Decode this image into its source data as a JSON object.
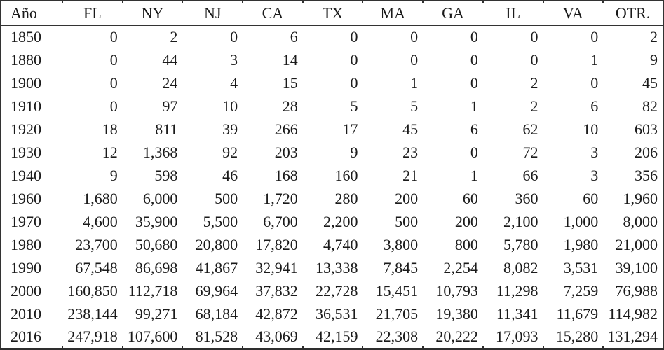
{
  "table": {
    "columns": [
      "Año",
      "FL",
      "NY",
      "NJ",
      "CA",
      "TX",
      "MA",
      "GA",
      "IL",
      "VA",
      "OTR."
    ],
    "rows": [
      [
        "1850",
        "0",
        "2",
        "0",
        "6",
        "0",
        "0",
        "0",
        "0",
        "0",
        "2"
      ],
      [
        "1880",
        "0",
        "44",
        "3",
        "14",
        "0",
        "0",
        "0",
        "0",
        "1",
        "9"
      ],
      [
        "1900",
        "0",
        "24",
        "4",
        "15",
        "0",
        "1",
        "0",
        "2",
        "0",
        "45"
      ],
      [
        "1910",
        "0",
        "97",
        "10",
        "28",
        "5",
        "5",
        "1",
        "2",
        "6",
        "82"
      ],
      [
        "1920",
        "18",
        "811",
        "39",
        "266",
        "17",
        "45",
        "6",
        "62",
        "10",
        "603"
      ],
      [
        "1930",
        "12",
        "1,368",
        "92",
        "203",
        "9",
        "23",
        "0",
        "72",
        "3",
        "206"
      ],
      [
        "1940",
        "9",
        "598",
        "46",
        "168",
        "160",
        "21",
        "1",
        "66",
        "3",
        "356"
      ],
      [
        "1960",
        "1,680",
        "6,000",
        "500",
        "1,720",
        "280",
        "200",
        "60",
        "360",
        "60",
        "1,960"
      ],
      [
        "1970",
        "4,600",
        "35,900",
        "5,500",
        "6,700",
        "2,200",
        "500",
        "200",
        "2,100",
        "1,000",
        "8,000"
      ],
      [
        "1980",
        "23,700",
        "50,680",
        "20,800",
        "17,820",
        "4,740",
        "3,800",
        "800",
        "5,780",
        "1,980",
        "21,000"
      ],
      [
        "1990",
        "67,548",
        "86,698",
        "41,867",
        "32,941",
        "13,338",
        "7,845",
        "2,254",
        "8,082",
        "3,531",
        "39,100"
      ],
      [
        "2000",
        "160,850",
        "112,718",
        "69,964",
        "37,832",
        "22,728",
        "15,451",
        "10,793",
        "11,298",
        "7,259",
        "76,988"
      ],
      [
        "2010",
        "238,144",
        "99,271",
        "68,184",
        "42,872",
        "36,531",
        "21,705",
        "19,380",
        "11,341",
        "11,679",
        "114,982"
      ],
      [
        "2016",
        "247,918",
        "107,600",
        "81,528",
        "43,069",
        "42,159",
        "22,308",
        "20,222",
        "17,093",
        "15,280",
        "131,294"
      ]
    ]
  },
  "colors": {
    "text": "#1a1a1a",
    "rule": "#333333",
    "background": "#ffffff"
  }
}
